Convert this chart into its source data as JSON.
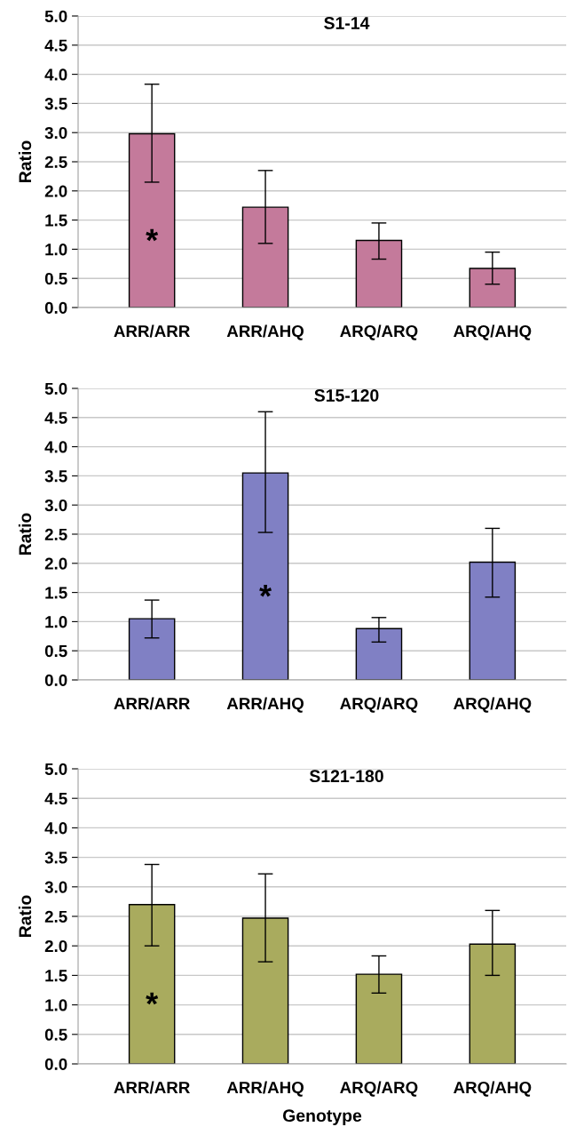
{
  "chart_data": [
    {
      "type": "bar",
      "title": "S1-14",
      "ylabel": "Ratio",
      "categories": [
        "ARR/ARR",
        "ARR/AHQ",
        "ARQ/ARQ",
        "ARQ/AHQ"
      ],
      "values": [
        2.98,
        1.72,
        1.15,
        0.67
      ],
      "errors": [
        [
          2.15,
          3.83
        ],
        [
          1.1,
          2.35
        ],
        [
          0.83,
          1.45
        ],
        [
          0.4,
          0.95
        ]
      ],
      "color": "#c47a9b",
      "ylim": [
        0,
        5
      ],
      "yticks": [
        {
          "value": 0,
          "label": "0.0"
        },
        {
          "value": 0.5,
          "label": "0.5"
        },
        {
          "value": 1,
          "label": "1.0"
        },
        {
          "value": 1.5,
          "label": "1.5"
        },
        {
          "value": 2,
          "label": "2.0"
        },
        {
          "value": 2.5,
          "label": "2.5"
        },
        {
          "value": 3,
          "label": "3.0"
        },
        {
          "value": 3.5,
          "label": "3.5"
        },
        {
          "value": 4,
          "label": "4.0"
        },
        {
          "value": 4.5,
          "label": "4.5"
        },
        {
          "value": 5,
          "label": "5.0"
        }
      ],
      "grid": "y",
      "value_labels": [
        "*",
        null,
        null,
        null
      ]
    },
    {
      "type": "bar",
      "title": "S15-120",
      "ylabel": "Ratio",
      "categories": [
        "ARR/ARR",
        "ARR/AHQ",
        "ARQ/ARQ",
        "ARQ/AHQ"
      ],
      "values": [
        1.05,
        3.55,
        0.88,
        2.02
      ],
      "errors": [
        [
          0.72,
          1.37
        ],
        [
          2.53,
          4.6
        ],
        [
          0.65,
          1.07
        ],
        [
          1.42,
          2.6
        ]
      ],
      "color": "#8080c4",
      "ylim": [
        0,
        5
      ],
      "yticks": [
        {
          "value": 0,
          "label": "0.0"
        },
        {
          "value": 0.5,
          "label": "0.5"
        },
        {
          "value": 1,
          "label": "1.0"
        },
        {
          "value": 1.5,
          "label": "1.5"
        },
        {
          "value": 2,
          "label": "2.0"
        },
        {
          "value": 2.5,
          "label": "2.5"
        },
        {
          "value": 3,
          "label": "3.0"
        },
        {
          "value": 3.5,
          "label": "3.5"
        },
        {
          "value": 4,
          "label": "4.0"
        },
        {
          "value": 4.5,
          "label": "4.5"
        },
        {
          "value": 5,
          "label": "5.0"
        }
      ],
      "grid": "y",
      "value_labels": [
        null,
        "*",
        null,
        null
      ]
    },
    {
      "type": "bar",
      "title": "S121-180",
      "ylabel": "Ratio",
      "xlabel": "Genotype",
      "categories": [
        "ARR/ARR",
        "ARR/AHQ",
        "ARQ/ARQ",
        "ARQ/AHQ"
      ],
      "values": [
        2.7,
        2.47,
        1.52,
        2.03
      ],
      "errors": [
        [
          2.0,
          3.38
        ],
        [
          1.73,
          3.22
        ],
        [
          1.2,
          1.83
        ],
        [
          1.5,
          2.6
        ]
      ],
      "color": "#a9ab5e",
      "ylim": [
        0,
        5
      ],
      "yticks": [
        {
          "value": 0,
          "label": "0.0"
        },
        {
          "value": 0.5,
          "label": "0.5"
        },
        {
          "value": 1,
          "label": "1.0"
        },
        {
          "value": 1.5,
          "label": "1.5"
        },
        {
          "value": 2,
          "label": "2.0"
        },
        {
          "value": 2.5,
          "label": "2.5"
        },
        {
          "value": 3,
          "label": "3.0"
        },
        {
          "value": 3.5,
          "label": "3.5"
        },
        {
          "value": 4,
          "label": "4.0"
        },
        {
          "value": 4.5,
          "label": "4.5"
        },
        {
          "value": 5,
          "label": "5.0"
        }
      ],
      "grid": "y",
      "value_labels": [
        "*",
        null,
        null,
        null
      ]
    }
  ]
}
